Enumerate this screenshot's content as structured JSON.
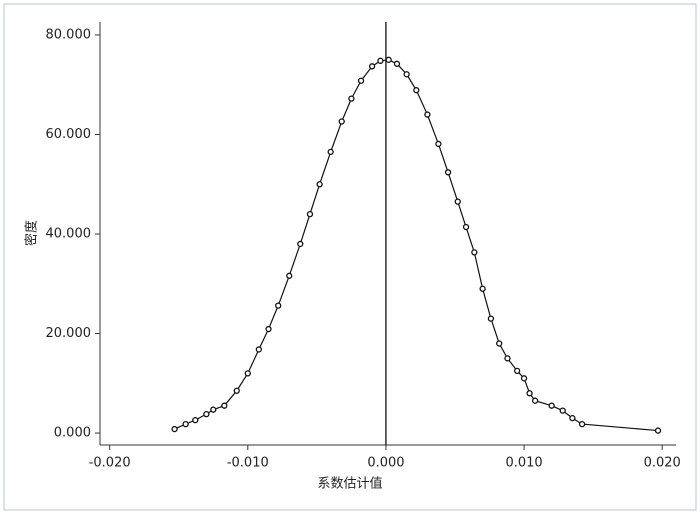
{
  "chart_data": {
    "type": "line",
    "xlabel": "系数估计值",
    "ylabel": "密度",
    "xlim": [
      -0.0207,
      0.021
    ],
    "ylim": [
      -2.4,
      82.6
    ],
    "xticks": [
      {
        "value": -0.02,
        "label": "-0.020"
      },
      {
        "value": -0.01,
        "label": "-0.010"
      },
      {
        "value": 0,
        "label": "0.000"
      },
      {
        "value": 0.01,
        "label": "0.010"
      },
      {
        "value": 0.02,
        "label": "0.020"
      }
    ],
    "yticks": [
      {
        "value": 0,
        "label": "0.000"
      },
      {
        "value": 20,
        "label": "20.000"
      },
      {
        "value": 40,
        "label": "40.000"
      },
      {
        "value": 60,
        "label": "60.000"
      },
      {
        "value": 80,
        "label": "80.000"
      }
    ],
    "xline": 0,
    "series": [
      {
        "color": "#111111",
        "x": [
          -0.0153,
          -0.0145,
          -0.0138,
          -0.013,
          -0.0125,
          -0.0117,
          -0.0108,
          -0.01,
          -0.0092,
          -0.0085,
          -0.0078,
          -0.007,
          -0.0062,
          -0.0055,
          -0.0048,
          -0.004,
          -0.0032,
          -0.0025,
          -0.0018,
          -0.001,
          -0.0004,
          0.0002,
          0.0008,
          0.0015,
          0.0022,
          0.003,
          0.0038,
          0.0045,
          0.0052,
          0.0058,
          0.0064,
          0.007,
          0.0076,
          0.0082,
          0.0088,
          0.0095,
          0.01,
          0.0104,
          0.0108,
          0.012,
          0.0128,
          0.0135,
          0.0142,
          0.0197
        ],
        "values": [
          0.8,
          1.8,
          2.6,
          3.8,
          4.7,
          5.5,
          8.5,
          12,
          16.8,
          20.9,
          25.6,
          31.6,
          38,
          44,
          50,
          56.5,
          62.6,
          67.2,
          70.8,
          73.7,
          74.8,
          75,
          74.2,
          72.1,
          68.9,
          64,
          58.1,
          52.4,
          46.5,
          41.4,
          36.3,
          29,
          23,
          18,
          15,
          12.5,
          11,
          8,
          6.5,
          5.5,
          4.5,
          3,
          1.8,
          0.5
        ]
      }
    ]
  }
}
